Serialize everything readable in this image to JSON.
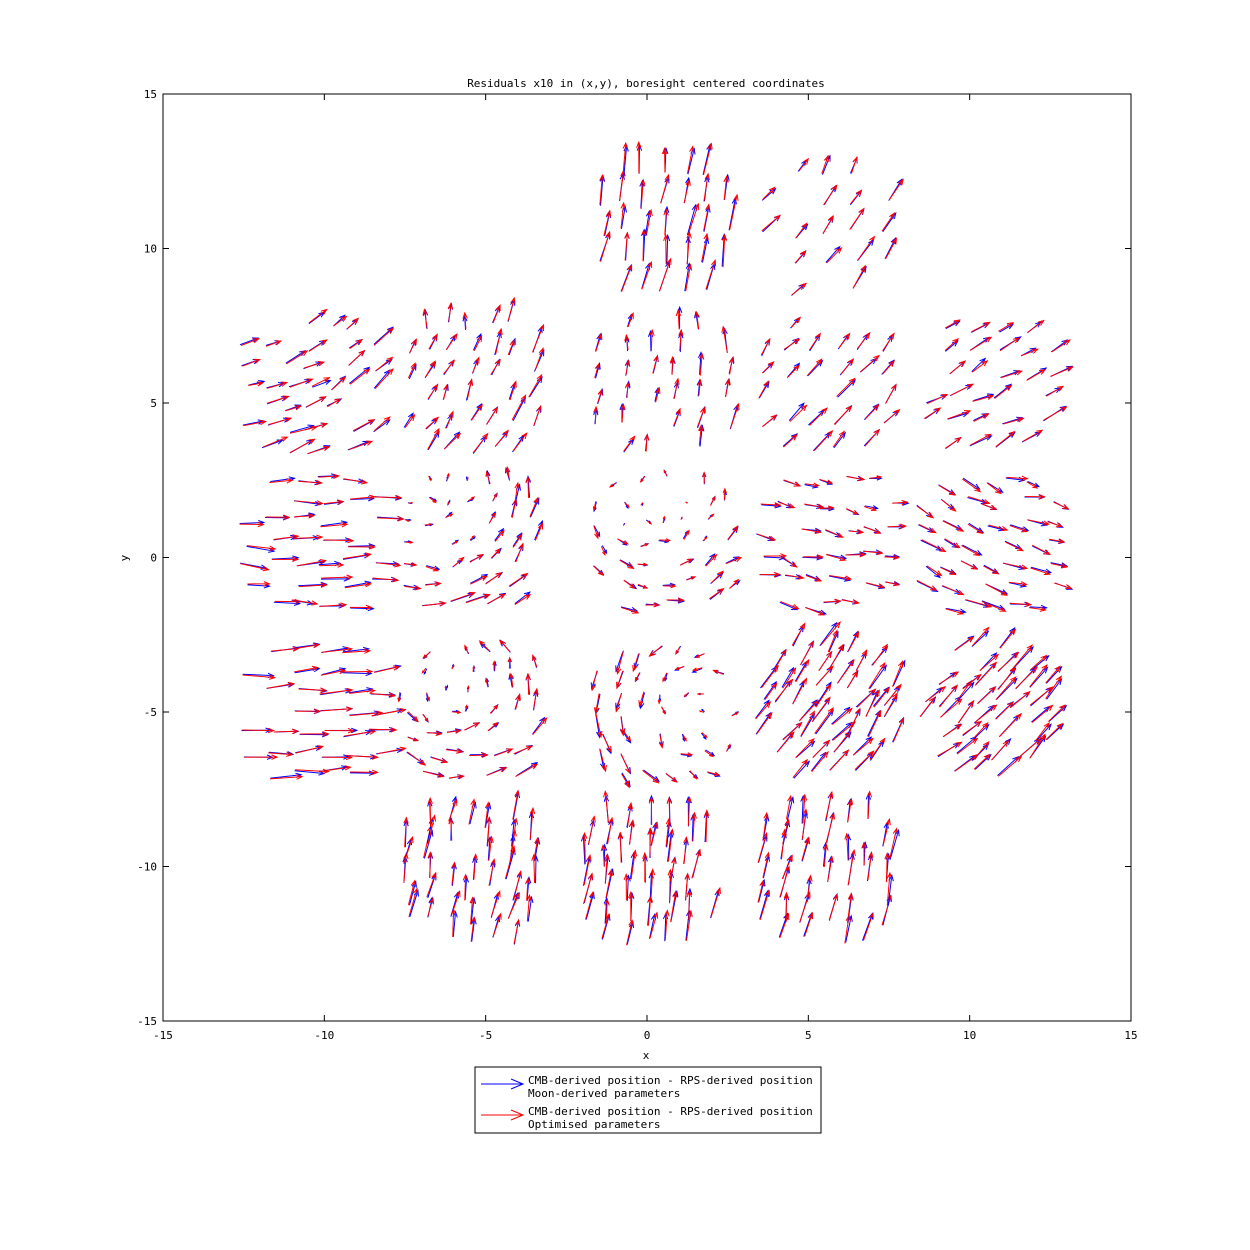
{
  "chart_data": {
    "type": "quiver",
    "title": "Residuals x10 in (x,y), boresight centered coordinates",
    "xlabel": "x",
    "ylabel": "y",
    "xlim": [
      -15,
      15
    ],
    "ylim": [
      -15,
      15
    ],
    "xticks": [
      -15,
      -10,
      -5,
      0,
      5,
      10,
      15
    ],
    "yticks": [
      -15,
      -10,
      -5,
      0,
      5,
      10,
      15
    ],
    "grid": false,
    "legend_position": "bottom-center",
    "scale_note": "residuals multiplied by 10",
    "series": [
      {
        "name_line1": "CMB-derived position - RPS-derived position",
        "name_line2": "Moon-derived parameters",
        "color": "#0000ff"
      },
      {
        "name_line1": "CMB-derived position - RPS-derived position",
        "name_line2": "Optimised parameters",
        "color": "#ff0000"
      }
    ],
    "field_groups": [
      {
        "center": [
          0.5,
          10.5
        ],
        "nx": 7,
        "ny": 5,
        "size": 3.8,
        "residual_x10": [
          0.15,
          0.95
        ],
        "curl": 0.05
      },
      {
        "center": [
          5.5,
          10.5
        ],
        "nx": 5,
        "ny": 5,
        "size": 3.8,
        "residual_x10": [
          0.45,
          0.55
        ],
        "curl": 0.08
      },
      {
        "center": [
          -10.5,
          5.5
        ],
        "nx": 7,
        "ny": 7,
        "size": 4.0,
        "residual_x10": [
          0.6,
          0.35
        ],
        "curl": 0.12
      },
      {
        "center": [
          -5.5,
          5.5
        ],
        "nx": 7,
        "ny": 6,
        "size": 4.0,
        "residual_x10": [
          0.25,
          0.6
        ],
        "curl": 0.15
      },
      {
        "center": [
          0.5,
          5.5
        ],
        "nx": 6,
        "ny": 6,
        "size": 4.0,
        "residual_x10": [
          0.1,
          0.6
        ],
        "curl": 0.08
      },
      {
        "center": [
          5.5,
          5.5
        ],
        "nx": 6,
        "ny": 6,
        "size": 3.8,
        "residual_x10": [
          0.45,
          0.5
        ],
        "curl": 0.06
      },
      {
        "center": [
          10.5,
          5.5
        ],
        "nx": 6,
        "ny": 6,
        "size": 3.8,
        "residual_x10": [
          0.6,
          0.35
        ],
        "curl": 0.05
      },
      {
        "center": [
          -10.5,
          0.5
        ],
        "nx": 6,
        "ny": 7,
        "size": 4.0,
        "residual_x10": [
          0.8,
          0.0
        ],
        "curl": 0.05
      },
      {
        "center": [
          -5.5,
          0.5
        ],
        "nx": 7,
        "ny": 7,
        "size": 4.0,
        "residual_x10": [
          0.3,
          0.25
        ],
        "curl": 0.35
      },
      {
        "center": [
          0.5,
          0.5
        ],
        "nx": 7,
        "ny": 7,
        "size": 4.0,
        "residual_x10": [
          0.2,
          0.05
        ],
        "curl": 0.3
      },
      {
        "center": [
          5.5,
          0.5
        ],
        "nx": 7,
        "ny": 6,
        "size": 4.0,
        "residual_x10": [
          0.55,
          -0.1
        ],
        "curl": 0.05
      },
      {
        "center": [
          10.5,
          0.5
        ],
        "nx": 7,
        "ny": 7,
        "size": 4.0,
        "residual_x10": [
          0.6,
          -0.2
        ],
        "curl": 0.08
      },
      {
        "center": [
          -10.5,
          -5.0
        ],
        "nx": 6,
        "ny": 7,
        "size": 4.0,
        "residual_x10": [
          0.95,
          0.05
        ],
        "curl": 0.03
      },
      {
        "center": [
          -5.5,
          -5.0
        ],
        "nx": 7,
        "ny": 7,
        "size": 4.0,
        "residual_x10": [
          0.2,
          0.15
        ],
        "curl": 0.4
      },
      {
        "center": [
          0.5,
          -5.0
        ],
        "nx": 7,
        "ny": 7,
        "size": 4.0,
        "residual_x10": [
          0.05,
          -0.3
        ],
        "curl": 0.35
      },
      {
        "center": [
          5.5,
          -5.0
        ],
        "nx": 8,
        "ny": 8,
        "size": 4.0,
        "residual_x10": [
          0.5,
          0.7
        ],
        "curl": 0.05
      },
      {
        "center": [
          10.5,
          -5.0
        ],
        "nx": 8,
        "ny": 8,
        "size": 4.0,
        "residual_x10": [
          0.6,
          0.6
        ],
        "curl": 0.05
      },
      {
        "center": [
          -5.5,
          -10.5
        ],
        "nx": 7,
        "ny": 7,
        "size": 3.8,
        "residual_x10": [
          0.15,
          0.85
        ],
        "curl": 0.05
      },
      {
        "center": [
          0.0,
          -10.5
        ],
        "nx": 7,
        "ny": 7,
        "size": 3.8,
        "residual_x10": [
          0.1,
          0.9
        ],
        "curl": 0.05
      },
      {
        "center": [
          5.5,
          -10.5
        ],
        "nx": 7,
        "ny": 7,
        "size": 3.8,
        "residual_x10": [
          0.15,
          0.9
        ],
        "curl": 0.05
      }
    ]
  }
}
